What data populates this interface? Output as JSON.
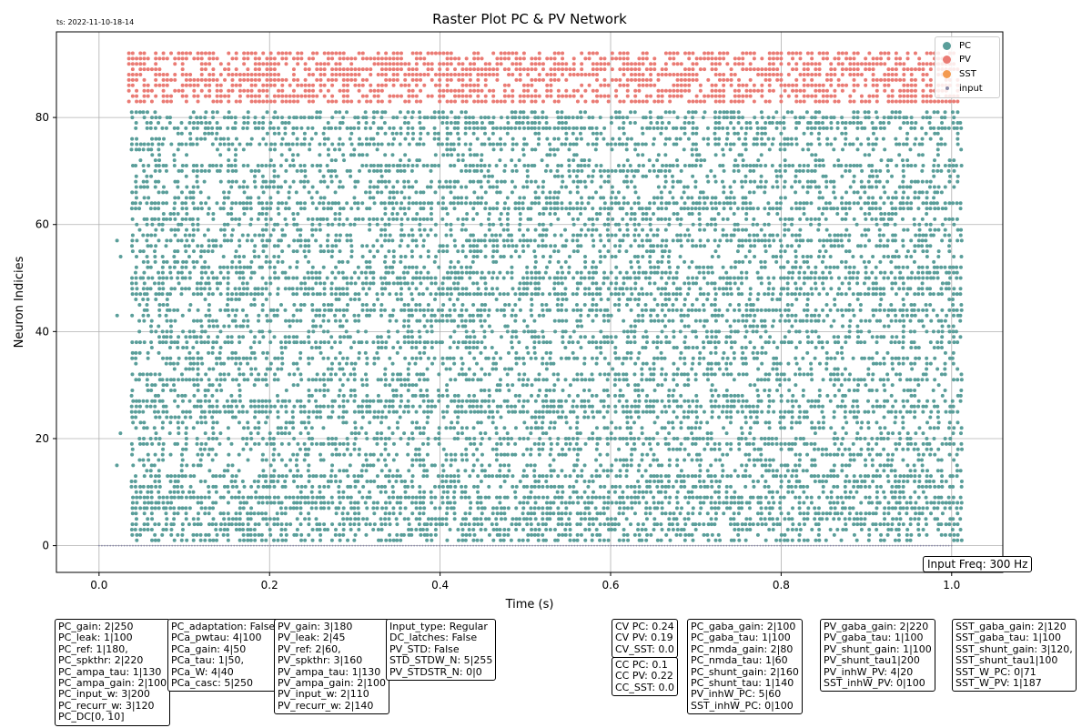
{
  "timestamp": "ts: 2022-11-10-18-14",
  "chart_data": {
    "type": "scatter",
    "title": "Raster Plot PC & PV Network",
    "xlabel": "Time (s)",
    "ylabel": "Neuron Indicies",
    "xlim": [
      -0.05,
      1.06
    ],
    "ylim": [
      -5,
      96
    ],
    "xticks": [
      "0.0",
      "0.2",
      "0.4",
      "0.6",
      "0.8",
      "1.0"
    ],
    "xtick_values": [
      0.0,
      0.2,
      0.4,
      0.6,
      0.8,
      1.0
    ],
    "yticks": [
      "0",
      "20",
      "40",
      "60",
      "80"
    ],
    "ytick_values": [
      0,
      20,
      40,
      60,
      80
    ],
    "grid": true,
    "legend_position": "top-right",
    "series": [
      {
        "name": "PC",
        "color": "#5a9e9a",
        "neuron_range": [
          1,
          81
        ],
        "time_range": [
          0.02,
          1.01
        ]
      },
      {
        "name": "PV",
        "color": "#ea7b74",
        "neuron_range": [
          83,
          92
        ],
        "time_range": [
          0.035,
          1.01
        ]
      },
      {
        "name": "SST",
        "color": "#f39a50",
        "neuron_range": [],
        "time_range": []
      },
      {
        "name": "input",
        "color": "#8a8aa8",
        "neuron_range": [
          0,
          0
        ],
        "time_range": [
          0.0,
          1.0
        ]
      }
    ],
    "annotation": "Input Freq: 300 Hz"
  },
  "param_boxes": [
    {
      "lines": [
        "PC_gain: 2|250",
        "PC_leak: 1|100",
        "PC_ref: 1|180,",
        "PC_spkthr: 2|220",
        "PC_ampa_tau: 1|130",
        "PC_ampa_gain: 2|100",
        "PC_input_w: 3|200",
        "PC_recurr_w: 3|120",
        "PC_DC[0, 10]"
      ]
    },
    {
      "lines": [
        "PC_adaptation: False",
        "PCa_pwtau: 4|100",
        "PCa_gain: 4|50",
        "PCa_tau: 1|50,",
        "PCa_W: 4|40",
        "PCa_casc: 5|250"
      ]
    },
    {
      "lines": [
        "PV_gain: 3|180",
        "PV_leak: 2|45",
        "PV_ref: 2|60,",
        "PV_spkthr: 3|160",
        "PV_ampa_tau: 1|130",
        "PV_ampa_gain: 2|100",
        "PV_input_w: 2|110",
        "PV_recurr_w: 2|140"
      ]
    },
    {
      "lines": [
        "Input_type: Regular",
        "DC_latches: False",
        "PV_STD: False",
        "STD_STDW_N: 5|255",
        "PV_STDSTR_N: 0|0"
      ]
    },
    {
      "lines": [
        "CV PC: 0.24",
        "CV PV: 0.19",
        "CV_SST: 0.0"
      ]
    },
    {
      "lines": [
        "CC PC: 0.1",
        "CC PV: 0.22",
        "CC_SST: 0.0"
      ]
    },
    {
      "lines": [
        "PC_gaba_gain: 2|100",
        "PC_gaba_tau: 1|100",
        "PC_nmda_gain: 2|80",
        "PC_nmda_tau: 1|60",
        "PC_shunt_gain: 2|160",
        "PC_shunt_tau: 1|140",
        "PV_inhW_PC: 5|60",
        "SST_inhW_PC: 0|100"
      ]
    },
    {
      "lines": [
        "PV_gaba_gain: 2|220",
        "PV_gaba_tau: 1|100",
        "PV_shunt_gain: 1|100",
        "PV_shunt_tau1|200",
        "PV_inhW_PV: 4|20",
        "SST_inhW_PV: 0|100"
      ]
    },
    {
      "lines": [
        "SST_gaba_gain: 2|120",
        "SST_gaba_tau: 1|100",
        "SST_shunt_gain: 3|120,",
        "SST_shunt_tau1|100",
        "SST_W_PC: 0|71",
        "SST_W_PV: 1|187"
      ]
    }
  ]
}
